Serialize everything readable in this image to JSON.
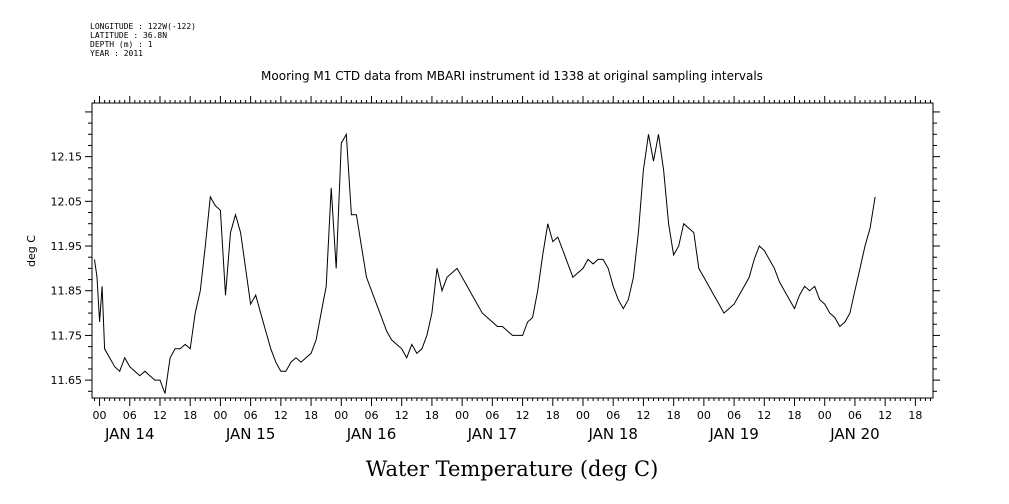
{
  "header_info": [
    "LONGITUDE : 122W(-122)",
    "LATITUDE : 36.8N",
    "DEPTH (m) : 1",
    "YEAR : 2011"
  ],
  "chart_data": {
    "type": "line",
    "title": "Mooring M1 CTD data from MBARI instrument id 1338 at original sampling intervals",
    "xlabel": "Water Temperature (deg C)",
    "ylabel": "deg C",
    "ylim": [
      11.61,
      12.27
    ],
    "y_ticks": [
      "11.65",
      "11.75",
      "11.85",
      "11.95",
      "12.05",
      "12.15"
    ],
    "x_range_hours": [
      -1.5,
      165.5
    ],
    "hour_tick_labels": [
      "00",
      "06",
      "12",
      "18",
      "00",
      "06",
      "12",
      "18",
      "00",
      "06",
      "12",
      "18",
      "00",
      "06",
      "12",
      "18",
      "00",
      "06",
      "12",
      "18",
      "00",
      "06",
      "12",
      "18",
      "00",
      "06",
      "12",
      "18"
    ],
    "day_labels": [
      "JAN 14",
      "JAN 15",
      "JAN 16",
      "JAN 17",
      "JAN 18",
      "JAN 19",
      "JAN 20"
    ],
    "grid": false,
    "series": [
      {
        "name": "",
        "color": "#000000",
        "points": [
          [
            -1.0,
            11.92
          ],
          [
            -0.5,
            11.88
          ],
          [
            0.0,
            11.78
          ],
          [
            0.5,
            11.86
          ],
          [
            1.0,
            11.72
          ],
          [
            2.0,
            11.7
          ],
          [
            3.0,
            11.68
          ],
          [
            4.0,
            11.67
          ],
          [
            5.0,
            11.7
          ],
          [
            6.0,
            11.68
          ],
          [
            7.0,
            11.67
          ],
          [
            8.0,
            11.66
          ],
          [
            9.0,
            11.67
          ],
          [
            10.0,
            11.66
          ],
          [
            11.0,
            11.65
          ],
          [
            12.0,
            11.65
          ],
          [
            13.0,
            11.62
          ],
          [
            14.0,
            11.7
          ],
          [
            15.0,
            11.72
          ],
          [
            16.0,
            11.72
          ],
          [
            17.0,
            11.73
          ],
          [
            18.0,
            11.72
          ],
          [
            19.0,
            11.8
          ],
          [
            20.0,
            11.85
          ],
          [
            21.0,
            11.95
          ],
          [
            22.0,
            12.06
          ],
          [
            23.0,
            12.04
          ],
          [
            24.0,
            12.03
          ],
          [
            25.0,
            11.84
          ],
          [
            26.0,
            11.98
          ],
          [
            27.0,
            12.02
          ],
          [
            28.0,
            11.98
          ],
          [
            29.0,
            11.9
          ],
          [
            30.0,
            11.82
          ],
          [
            31.0,
            11.84
          ],
          [
            32.0,
            11.8
          ],
          [
            33.0,
            11.76
          ],
          [
            34.0,
            11.72
          ],
          [
            35.0,
            11.69
          ],
          [
            36.0,
            11.67
          ],
          [
            37.0,
            11.67
          ],
          [
            38.0,
            11.69
          ],
          [
            39.0,
            11.7
          ],
          [
            40.0,
            11.69
          ],
          [
            41.0,
            11.7
          ],
          [
            42.0,
            11.71
          ],
          [
            43.0,
            11.74
          ],
          [
            44.0,
            11.8
          ],
          [
            45.0,
            11.86
          ],
          [
            46.0,
            12.08
          ],
          [
            47.0,
            11.9
          ],
          [
            48.0,
            12.18
          ],
          [
            49.0,
            12.2
          ],
          [
            50.0,
            12.02
          ],
          [
            51.0,
            12.02
          ],
          [
            52.0,
            11.95
          ],
          [
            53.0,
            11.88
          ],
          [
            54.0,
            11.85
          ],
          [
            55.0,
            11.82
          ],
          [
            56.0,
            11.79
          ],
          [
            57.0,
            11.76
          ],
          [
            58.0,
            11.74
          ],
          [
            59.0,
            11.73
          ],
          [
            60.0,
            11.72
          ],
          [
            61.0,
            11.7
          ],
          [
            62.0,
            11.73
          ],
          [
            63.0,
            11.71
          ],
          [
            64.0,
            11.72
          ],
          [
            65.0,
            11.75
          ],
          [
            66.0,
            11.8
          ],
          [
            67.0,
            11.9
          ],
          [
            68.0,
            11.85
          ],
          [
            69.0,
            11.88
          ],
          [
            70.0,
            11.89
          ],
          [
            71.0,
            11.9
          ],
          [
            72.0,
            11.88
          ],
          [
            73.0,
            11.86
          ],
          [
            74.0,
            11.84
          ],
          [
            75.0,
            11.82
          ],
          [
            76.0,
            11.8
          ],
          [
            77.0,
            11.79
          ],
          [
            78.0,
            11.78
          ],
          [
            79.0,
            11.77
          ],
          [
            80.0,
            11.77
          ],
          [
            81.0,
            11.76
          ],
          [
            82.0,
            11.75
          ],
          [
            83.0,
            11.75
          ],
          [
            84.0,
            11.75
          ],
          [
            85.0,
            11.78
          ],
          [
            86.0,
            11.79
          ],
          [
            87.0,
            11.85
          ],
          [
            88.0,
            11.93
          ],
          [
            89.0,
            12.0
          ],
          [
            90.0,
            11.96
          ],
          [
            91.0,
            11.97
          ],
          [
            92.0,
            11.94
          ],
          [
            93.0,
            11.91
          ],
          [
            94.0,
            11.88
          ],
          [
            95.0,
            11.89
          ],
          [
            96.0,
            11.9
          ],
          [
            97.0,
            11.92
          ],
          [
            98.0,
            11.91
          ],
          [
            99.0,
            11.92
          ],
          [
            100.0,
            11.92
          ],
          [
            101.0,
            11.9
          ],
          [
            102.0,
            11.86
          ],
          [
            103.0,
            11.83
          ],
          [
            104.0,
            11.81
          ],
          [
            105.0,
            11.83
          ],
          [
            106.0,
            11.88
          ],
          [
            107.0,
            11.98
          ],
          [
            108.0,
            12.12
          ],
          [
            109.0,
            12.2
          ],
          [
            110.0,
            12.14
          ],
          [
            111.0,
            12.2
          ],
          [
            112.0,
            12.12
          ],
          [
            113.0,
            12.0
          ],
          [
            114.0,
            11.93
          ],
          [
            115.0,
            11.95
          ],
          [
            116.0,
            12.0
          ],
          [
            117.0,
            11.99
          ],
          [
            118.0,
            11.98
          ],
          [
            119.0,
            11.9
          ],
          [
            120.0,
            11.88
          ],
          [
            121.0,
            11.86
          ],
          [
            122.0,
            11.84
          ],
          [
            123.0,
            11.82
          ],
          [
            124.0,
            11.8
          ],
          [
            125.0,
            11.81
          ],
          [
            126.0,
            11.82
          ],
          [
            127.0,
            11.84
          ],
          [
            128.0,
            11.86
          ],
          [
            129.0,
            11.88
          ],
          [
            130.0,
            11.92
          ],
          [
            131.0,
            11.95
          ],
          [
            132.0,
            11.94
          ],
          [
            133.0,
            11.92
          ],
          [
            134.0,
            11.9
          ],
          [
            135.0,
            11.87
          ],
          [
            136.0,
            11.85
          ],
          [
            137.0,
            11.83
          ],
          [
            138.0,
            11.81
          ],
          [
            139.0,
            11.84
          ],
          [
            140.0,
            11.86
          ],
          [
            141.0,
            11.85
          ],
          [
            142.0,
            11.86
          ],
          [
            143.0,
            11.83
          ],
          [
            144.0,
            11.82
          ],
          [
            145.0,
            11.8
          ],
          [
            146.0,
            11.79
          ],
          [
            147.0,
            11.77
          ],
          [
            148.0,
            11.78
          ],
          [
            149.0,
            11.8
          ],
          [
            150.0,
            11.85
          ],
          [
            151.0,
            11.9
          ],
          [
            152.0,
            11.95
          ],
          [
            153.0,
            11.99
          ],
          [
            154.0,
            12.06
          ]
        ]
      }
    ]
  }
}
